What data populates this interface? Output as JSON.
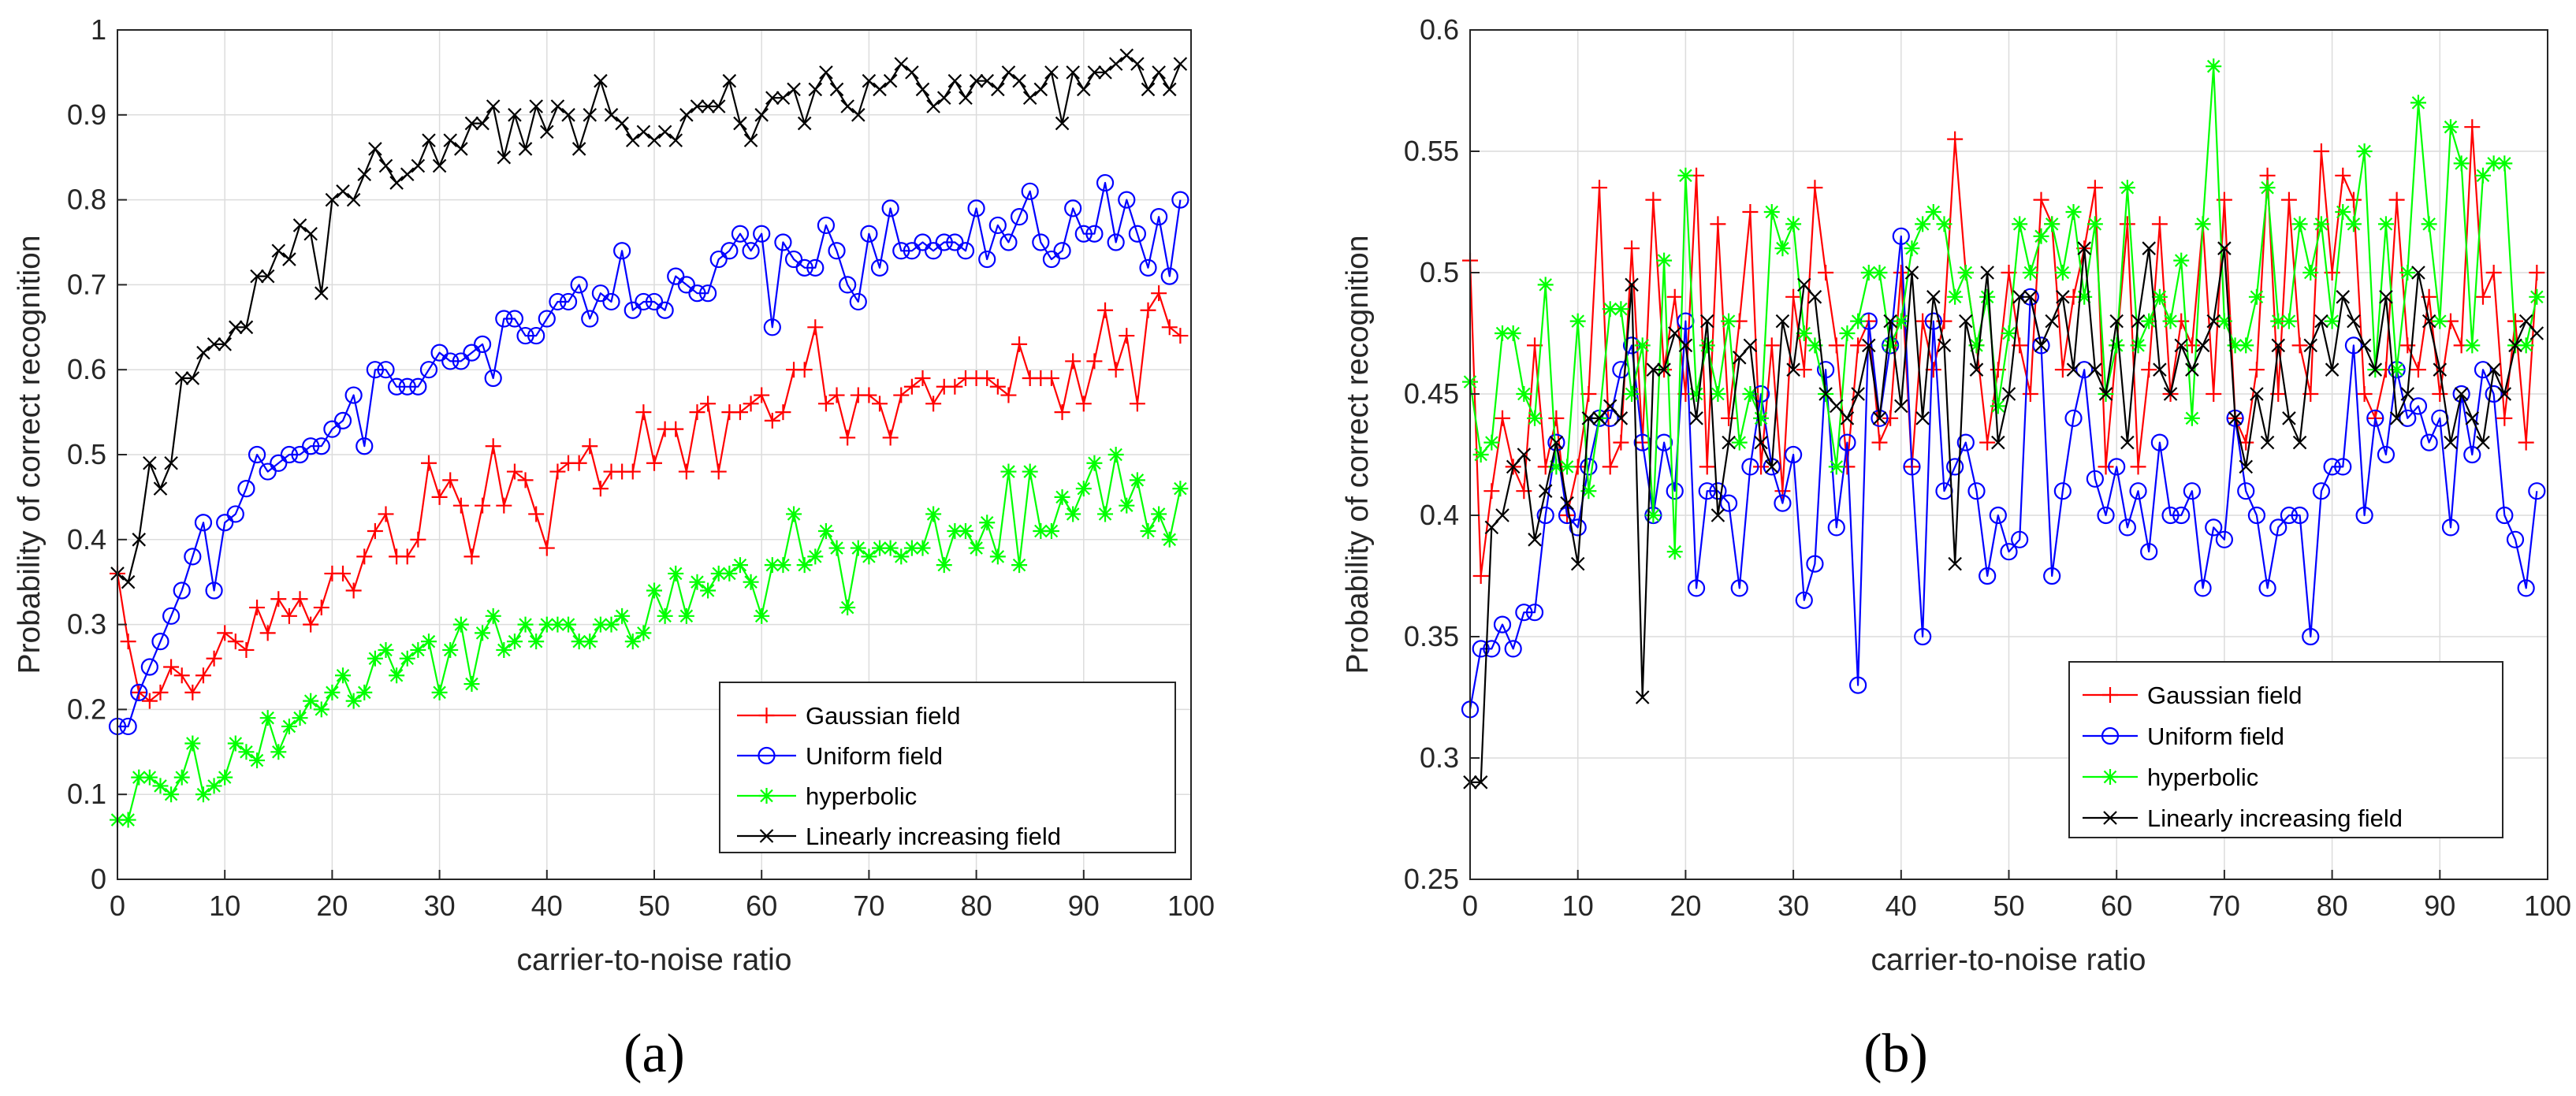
{
  "chart_data": [
    {
      "type": "line",
      "caption": "(a)",
      "xlabel": "carrier-to-noise ratio",
      "ylabel": "Probability of correct recognition",
      "xlim": [
        0,
        100
      ],
      "ylim": [
        0,
        1
      ],
      "xticks": [
        "0",
        "10",
        "20",
        "30",
        "40",
        "50",
        "60",
        "70",
        "80",
        "90",
        "100"
      ],
      "yticks": [
        "0",
        "0.1",
        "0.2",
        "0.3",
        "0.4",
        "0.5",
        "0.6",
        "0.7",
        "0.8",
        "0.9",
        "1"
      ],
      "grid": true,
      "legend_position": "bottom-right",
      "x": [
        0,
        1,
        2,
        3,
        4,
        5,
        6,
        7,
        8,
        9,
        10,
        11,
        12,
        13,
        14,
        15,
        16,
        17,
        18,
        19,
        20,
        21,
        22,
        23,
        24,
        25,
        26,
        27,
        28,
        29,
        30,
        31,
        32,
        33,
        34,
        35,
        36,
        37,
        38,
        39,
        40,
        41,
        42,
        43,
        44,
        45,
        46,
        47,
        48,
        49,
        50,
        51,
        52,
        53,
        54,
        55,
        56,
        57,
        58,
        59,
        60,
        61,
        62,
        63,
        64,
        65,
        66,
        67,
        68,
        69,
        70,
        71,
        72,
        73,
        74,
        75,
        76,
        77,
        78,
        79,
        80,
        81,
        82,
        83,
        84,
        85,
        86,
        87,
        88,
        89,
        90,
        91,
        92,
        93,
        94,
        95,
        96,
        97,
        98,
        99
      ],
      "series": [
        {
          "name": "Gaussian field",
          "color": "#ff0000",
          "marker": "plus",
          "values": [
            0.36,
            0.28,
            0.22,
            0.21,
            0.22,
            0.25,
            0.24,
            0.22,
            0.24,
            0.26,
            0.29,
            0.28,
            0.27,
            0.32,
            0.29,
            0.33,
            0.31,
            0.33,
            0.3,
            0.32,
            0.36,
            0.36,
            0.34,
            0.38,
            0.41,
            0.43,
            0.38,
            0.38,
            0.4,
            0.49,
            0.45,
            0.47,
            0.44,
            0.38,
            0.44,
            0.51,
            0.44,
            0.48,
            0.47,
            0.43,
            0.39,
            0.48,
            0.49,
            0.49,
            0.51,
            0.46,
            0.48,
            0.48,
            0.48,
            0.55,
            0.49,
            0.53,
            0.53,
            0.48,
            0.55,
            0.56,
            0.48,
            0.55,
            0.55,
            0.56,
            0.57,
            0.54,
            0.55,
            0.6,
            0.6,
            0.65,
            0.56,
            0.57,
            0.52,
            0.57,
            0.57,
            0.56,
            0.52,
            0.57,
            0.58,
            0.59,
            0.56,
            0.58,
            0.58,
            0.59,
            0.59,
            0.59,
            0.58,
            0.57,
            0.63,
            0.59,
            0.59,
            0.59,
            0.55,
            0.61,
            0.56,
            0.61,
            0.67,
            0.6,
            0.64,
            0.56,
            0.67,
            0.69,
            0.65,
            0.64
          ]
        },
        {
          "name": "Uniform field",
          "color": "#0000ff",
          "marker": "circle",
          "values": [
            0.18,
            0.18,
            0.22,
            0.25,
            0.28,
            0.31,
            0.34,
            0.38,
            0.42,
            0.34,
            0.42,
            0.43,
            0.46,
            0.5,
            0.48,
            0.49,
            0.5,
            0.5,
            0.51,
            0.51,
            0.53,
            0.54,
            0.57,
            0.51,
            0.6,
            0.6,
            0.58,
            0.58,
            0.58,
            0.6,
            0.62,
            0.61,
            0.61,
            0.62,
            0.63,
            0.59,
            0.66,
            0.66,
            0.64,
            0.64,
            0.66,
            0.68,
            0.68,
            0.7,
            0.66,
            0.69,
            0.68,
            0.74,
            0.67,
            0.68,
            0.68,
            0.67,
            0.71,
            0.7,
            0.69,
            0.69,
            0.73,
            0.74,
            0.76,
            0.74,
            0.76,
            0.65,
            0.75,
            0.73,
            0.72,
            0.72,
            0.77,
            0.74,
            0.7,
            0.68,
            0.76,
            0.72,
            0.79,
            0.74,
            0.74,
            0.75,
            0.74,
            0.75,
            0.75,
            0.74,
            0.79,
            0.73,
            0.77,
            0.75,
            0.78,
            0.81,
            0.75,
            0.73,
            0.74,
            0.79,
            0.76,
            0.76,
            0.82,
            0.75,
            0.8,
            0.76,
            0.72,
            0.78,
            0.71,
            0.8
          ]
        },
        {
          "name": "hyperbolic",
          "color": "#00ff00",
          "marker": "asterisk",
          "values": [
            0.07,
            0.07,
            0.12,
            0.12,
            0.11,
            0.1,
            0.12,
            0.16,
            0.1,
            0.11,
            0.12,
            0.16,
            0.15,
            0.14,
            0.19,
            0.15,
            0.18,
            0.19,
            0.21,
            0.2,
            0.22,
            0.24,
            0.21,
            0.22,
            0.26,
            0.27,
            0.24,
            0.26,
            0.27,
            0.28,
            0.22,
            0.27,
            0.3,
            0.23,
            0.29,
            0.31,
            0.27,
            0.28,
            0.3,
            0.28,
            0.3,
            0.3,
            0.3,
            0.28,
            0.28,
            0.3,
            0.3,
            0.31,
            0.28,
            0.29,
            0.34,
            0.31,
            0.36,
            0.31,
            0.35,
            0.34,
            0.36,
            0.36,
            0.37,
            0.35,
            0.31,
            0.37,
            0.37,
            0.43,
            0.37,
            0.38,
            0.41,
            0.39,
            0.32,
            0.39,
            0.38,
            0.39,
            0.39,
            0.38,
            0.39,
            0.39,
            0.43,
            0.37,
            0.41,
            0.41,
            0.39,
            0.42,
            0.38,
            0.48,
            0.37,
            0.48,
            0.41,
            0.41,
            0.45,
            0.43,
            0.46,
            0.49,
            0.43,
            0.5,
            0.44,
            0.47,
            0.41,
            0.43,
            0.4,
            0.46
          ]
        },
        {
          "name": "Linearly increasing field",
          "color": "#000000",
          "marker": "cross",
          "values": [
            0.36,
            0.35,
            0.4,
            0.49,
            0.46,
            0.49,
            0.59,
            0.59,
            0.62,
            0.63,
            0.63,
            0.65,
            0.65,
            0.71,
            0.71,
            0.74,
            0.73,
            0.77,
            0.76,
            0.69,
            0.8,
            0.81,
            0.8,
            0.83,
            0.86,
            0.84,
            0.82,
            0.83,
            0.84,
            0.87,
            0.84,
            0.87,
            0.86,
            0.89,
            0.89,
            0.91,
            0.85,
            0.9,
            0.86,
            0.91,
            0.88,
            0.91,
            0.9,
            0.86,
            0.9,
            0.94,
            0.9,
            0.89,
            0.87,
            0.88,
            0.87,
            0.88,
            0.87,
            0.9,
            0.91,
            0.91,
            0.91,
            0.94,
            0.89,
            0.87,
            0.9,
            0.92,
            0.92,
            0.93,
            0.89,
            0.93,
            0.95,
            0.93,
            0.91,
            0.9,
            0.94,
            0.93,
            0.94,
            0.96,
            0.95,
            0.93,
            0.91,
            0.92,
            0.94,
            0.92,
            0.94,
            0.94,
            0.93,
            0.95,
            0.94,
            0.92,
            0.93,
            0.95,
            0.89,
            0.95,
            0.93,
            0.95,
            0.95,
            0.96,
            0.97,
            0.96,
            0.93,
            0.95,
            0.93,
            0.96
          ]
        }
      ]
    },
    {
      "type": "line",
      "caption": "(b)",
      "xlabel": "carrier-to-noise ratio",
      "ylabel": "Probability of correct recognition",
      "xlim": [
        0,
        100
      ],
      "ylim": [
        0.25,
        0.6
      ],
      "xticks": [
        "0",
        "10",
        "20",
        "30",
        "40",
        "50",
        "60",
        "70",
        "80",
        "90",
        "100"
      ],
      "yticks": [
        "0.25",
        "0.3",
        "0.35",
        "0.4",
        "0.45",
        "0.5",
        "0.55",
        "0.6"
      ],
      "grid": true,
      "legend_position": "bottom-right",
      "x": [
        0,
        1,
        2,
        3,
        4,
        5,
        6,
        7,
        8,
        9,
        10,
        11,
        12,
        13,
        14,
        15,
        16,
        17,
        18,
        19,
        20,
        21,
        22,
        23,
        24,
        25,
        26,
        27,
        28,
        29,
        30,
        31,
        32,
        33,
        34,
        35,
        36,
        37,
        38,
        39,
        40,
        41,
        42,
        43,
        44,
        45,
        46,
        47,
        48,
        49,
        50,
        51,
        52,
        53,
        54,
        55,
        56,
        57,
        58,
        59,
        60,
        61,
        62,
        63,
        64,
        65,
        66,
        67,
        68,
        69,
        70,
        71,
        72,
        73,
        74,
        75,
        76,
        77,
        78,
        79,
        80,
        81,
        82,
        83,
        84,
        85,
        86,
        87,
        88,
        89,
        90,
        91,
        92,
        93,
        94,
        95,
        96,
        97,
        98,
        99
      ],
      "series": [
        {
          "name": "Gaussian field",
          "color": "#ff0000",
          "marker": "plus",
          "values": [
            0.505,
            0.375,
            0.41,
            0.44,
            0.42,
            0.41,
            0.47,
            0.42,
            0.44,
            0.4,
            0.42,
            0.45,
            0.535,
            0.42,
            0.43,
            0.51,
            0.43,
            0.53,
            0.46,
            0.49,
            0.45,
            0.54,
            0.42,
            0.52,
            0.44,
            0.48,
            0.525,
            0.42,
            0.47,
            0.41,
            0.49,
            0.46,
            0.535,
            0.5,
            0.47,
            0.42,
            0.47,
            0.48,
            0.43,
            0.44,
            0.5,
            0.42,
            0.48,
            0.46,
            0.48,
            0.555,
            0.5,
            0.47,
            0.43,
            0.46,
            0.5,
            0.47,
            0.45,
            0.53,
            0.52,
            0.46,
            0.49,
            0.51,
            0.535,
            0.42,
            0.47,
            0.52,
            0.42,
            0.46,
            0.52,
            0.45,
            0.48,
            0.47,
            0.52,
            0.45,
            0.53,
            0.44,
            0.43,
            0.46,
            0.54,
            0.45,
            0.53,
            0.47,
            0.45,
            0.55,
            0.5,
            0.54,
            0.53,
            0.45,
            0.44,
            0.46,
            0.53,
            0.47,
            0.46,
            0.49,
            0.45,
            0.48,
            0.47,
            0.56,
            0.49,
            0.5,
            0.44,
            0.48,
            0.43,
            0.5
          ]
        },
        {
          "name": "Uniform field",
          "color": "#0000ff",
          "marker": "circle",
          "values": [
            0.32,
            0.345,
            0.345,
            0.355,
            0.345,
            0.36,
            0.36,
            0.4,
            0.43,
            0.4,
            0.395,
            0.42,
            0.44,
            0.44,
            0.46,
            0.47,
            0.43,
            0.4,
            0.43,
            0.41,
            0.48,
            0.37,
            0.41,
            0.41,
            0.405,
            0.37,
            0.42,
            0.45,
            0.42,
            0.405,
            0.425,
            0.365,
            0.38,
            0.46,
            0.395,
            0.43,
            0.33,
            0.48,
            0.44,
            0.47,
            0.515,
            0.42,
            0.35,
            0.48,
            0.41,
            0.42,
            0.43,
            0.41,
            0.375,
            0.4,
            0.385,
            0.39,
            0.49,
            0.47,
            0.375,
            0.41,
            0.44,
            0.46,
            0.415,
            0.4,
            0.42,
            0.395,
            0.41,
            0.385,
            0.43,
            0.4,
            0.4,
            0.41,
            0.37,
            0.395,
            0.39,
            0.44,
            0.41,
            0.4,
            0.37,
            0.395,
            0.4,
            0.4,
            0.35,
            0.41,
            0.42,
            0.42,
            0.47,
            0.4,
            0.44,
            0.425,
            0.46,
            0.44,
            0.445,
            0.43,
            0.44,
            0.395,
            0.45,
            0.425,
            0.46,
            0.45,
            0.4,
            0.39,
            0.37,
            0.41
          ]
        },
        {
          "name": "hyperbolic",
          "color": "#00ff00",
          "marker": "asterisk",
          "values": [
            0.455,
            0.425,
            0.43,
            0.475,
            0.475,
            0.45,
            0.44,
            0.495,
            0.42,
            0.42,
            0.48,
            0.41,
            0.44,
            0.485,
            0.485,
            0.45,
            0.47,
            0.4,
            0.505,
            0.385,
            0.54,
            0.45,
            0.47,
            0.45,
            0.48,
            0.43,
            0.45,
            0.44,
            0.525,
            0.51,
            0.52,
            0.475,
            0.47,
            0.45,
            0.42,
            0.475,
            0.48,
            0.5,
            0.5,
            0.47,
            0.48,
            0.51,
            0.52,
            0.525,
            0.52,
            0.49,
            0.5,
            0.47,
            0.49,
            0.445,
            0.475,
            0.52,
            0.5,
            0.515,
            0.52,
            0.5,
            0.525,
            0.49,
            0.52,
            0.45,
            0.47,
            0.535,
            0.47,
            0.48,
            0.49,
            0.48,
            0.505,
            0.44,
            0.52,
            0.585,
            0.48,
            0.47,
            0.47,
            0.49,
            0.535,
            0.48,
            0.48,
            0.52,
            0.5,
            0.52,
            0.48,
            0.525,
            0.52,
            0.55,
            0.46,
            0.52,
            0.46,
            0.5,
            0.57,
            0.52,
            0.48,
            0.56,
            0.545,
            0.47,
            0.54,
            0.545,
            0.545,
            0.47,
            0.47,
            0.49
          ]
        },
        {
          "name": "Linearly increasing field",
          "color": "#000000",
          "marker": "cross",
          "values": [
            0.29,
            0.29,
            0.395,
            0.4,
            0.42,
            0.425,
            0.39,
            0.41,
            0.43,
            0.405,
            0.38,
            0.44,
            0.44,
            0.445,
            0.44,
            0.495,
            0.325,
            0.46,
            0.46,
            0.475,
            0.47,
            0.44,
            0.48,
            0.4,
            0.43,
            0.465,
            0.47,
            0.43,
            0.42,
            0.48,
            0.46,
            0.495,
            0.49,
            0.45,
            0.445,
            0.44,
            0.45,
            0.47,
            0.44,
            0.48,
            0.445,
            0.5,
            0.44,
            0.49,
            0.47,
            0.38,
            0.48,
            0.46,
            0.5,
            0.43,
            0.45,
            0.49,
            0.49,
            0.47,
            0.48,
            0.49,
            0.46,
            0.51,
            0.46,
            0.45,
            0.48,
            0.43,
            0.48,
            0.51,
            0.46,
            0.45,
            0.47,
            0.46,
            0.47,
            0.48,
            0.51,
            0.44,
            0.42,
            0.45,
            0.43,
            0.47,
            0.44,
            0.43,
            0.47,
            0.48,
            0.46,
            0.49,
            0.48,
            0.47,
            0.46,
            0.49,
            0.44,
            0.45,
            0.5,
            0.48,
            0.46,
            0.43,
            0.45,
            0.44,
            0.43,
            0.46,
            0.45,
            0.47,
            0.48,
            0.475
          ]
        }
      ]
    }
  ]
}
